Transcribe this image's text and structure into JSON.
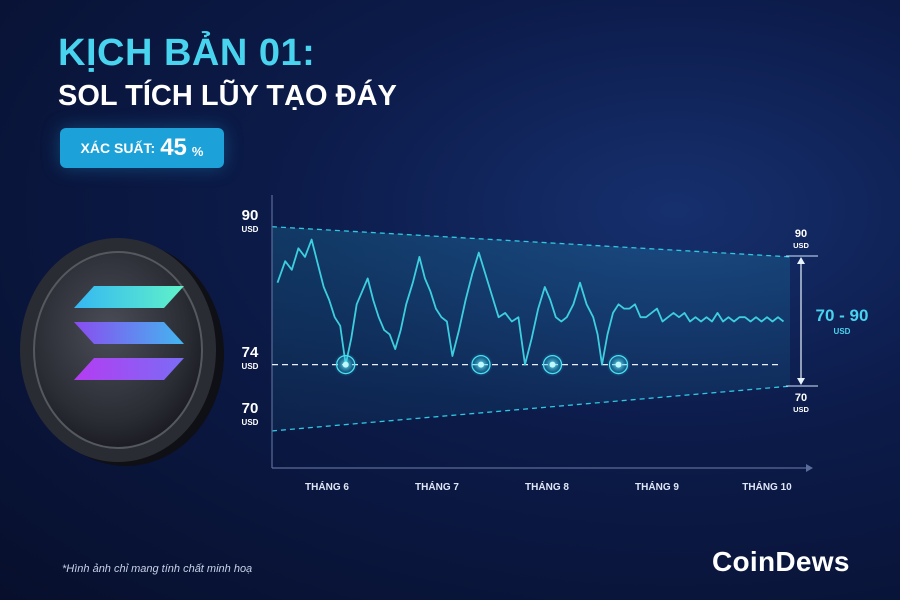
{
  "header": {
    "title": "KỊCH BẢN 01:",
    "subtitle": "SOL TÍCH LŨY TẠO ĐÁY"
  },
  "badge": {
    "label": "XÁC SUẤT:",
    "value": "45",
    "unit": "%"
  },
  "coin": {
    "icon": "solana-logo-icon"
  },
  "chart_data": {
    "type": "line",
    "title": "",
    "xlabel": "",
    "ylabel": "",
    "ylim": [
      62,
      96
    ],
    "x_tick_labels": [
      "THÁNG 6",
      "THÁNG 7",
      "THÁNG 8",
      "THÁNG 9",
      "THÁNG 10"
    ],
    "x_range": [
      5.5,
      10.3
    ],
    "series": [
      {
        "values": [
          [
            5.55,
            83.5
          ],
          [
            5.62,
            86.0
          ],
          [
            5.68,
            85.0
          ],
          [
            5.74,
            87.5
          ],
          [
            5.8,
            86.5
          ],
          [
            5.86,
            88.5
          ],
          [
            5.92,
            85.5
          ],
          [
            5.97,
            83.0
          ],
          [
            6.02,
            81.5
          ],
          [
            6.07,
            79.5
          ],
          [
            6.12,
            78.5
          ],
          [
            6.17,
            74.0
          ],
          [
            6.22,
            77.0
          ],
          [
            6.27,
            81.0
          ],
          [
            6.32,
            82.5
          ],
          [
            6.37,
            84.0
          ],
          [
            6.42,
            81.5
          ],
          [
            6.47,
            79.5
          ],
          [
            6.52,
            78.0
          ],
          [
            6.57,
            77.5
          ],
          [
            6.62,
            75.8
          ],
          [
            6.67,
            78.0
          ],
          [
            6.72,
            81.0
          ],
          [
            6.78,
            83.5
          ],
          [
            6.84,
            86.5
          ],
          [
            6.89,
            84.0
          ],
          [
            6.94,
            82.5
          ],
          [
            6.99,
            80.5
          ],
          [
            7.04,
            79.5
          ],
          [
            7.09,
            79.0
          ],
          [
            7.14,
            75.0
          ],
          [
            7.2,
            78.0
          ],
          [
            7.26,
            81.5
          ],
          [
            7.32,
            84.5
          ],
          [
            7.38,
            87.0
          ],
          [
            7.44,
            84.5
          ],
          [
            7.5,
            82.0
          ],
          [
            7.56,
            79.5
          ],
          [
            7.62,
            80.0
          ],
          [
            7.68,
            79.0
          ],
          [
            7.74,
            79.5
          ],
          [
            7.8,
            74.0
          ],
          [
            7.86,
            77.0
          ],
          [
            7.92,
            80.5
          ],
          [
            7.98,
            83.0
          ],
          [
            8.03,
            81.5
          ],
          [
            8.08,
            79.5
          ],
          [
            8.13,
            79.0
          ],
          [
            8.18,
            79.5
          ],
          [
            8.24,
            81.0
          ],
          [
            8.3,
            83.5
          ],
          [
            8.36,
            81.0
          ],
          [
            8.42,
            79.5
          ],
          [
            8.46,
            77.5
          ],
          [
            8.5,
            74.0
          ],
          [
            8.55,
            77.5
          ],
          [
            8.6,
            80.0
          ],
          [
            8.65,
            81.0
          ],
          [
            8.7,
            80.5
          ],
          [
            8.75,
            80.5
          ],
          [
            8.8,
            81.0
          ],
          [
            8.85,
            79.5
          ],
          [
            8.9,
            79.5
          ],
          [
            8.95,
            80.0
          ],
          [
            9.0,
            80.5
          ],
          [
            9.05,
            79.0
          ],
          [
            9.1,
            79.5
          ],
          [
            9.15,
            80.0
          ],
          [
            9.2,
            79.5
          ],
          [
            9.25,
            80.0
          ],
          [
            9.3,
            79.0
          ],
          [
            9.35,
            79.5
          ],
          [
            9.4,
            79.0
          ],
          [
            9.45,
            79.5
          ],
          [
            9.5,
            79.0
          ],
          [
            9.55,
            80.0
          ],
          [
            9.6,
            79.0
          ],
          [
            9.65,
            79.5
          ],
          [
            9.7,
            79.0
          ],
          [
            9.75,
            79.5
          ],
          [
            9.8,
            79.5
          ],
          [
            9.85,
            79.0
          ],
          [
            9.9,
            79.5
          ],
          [
            9.95,
            79.0
          ],
          [
            10.0,
            79.5
          ],
          [
            10.05,
            79.0
          ],
          [
            10.1,
            79.5
          ],
          [
            10.15,
            79.0
          ]
        ]
      }
    ],
    "support_level": {
      "value": 74,
      "label_value": "74",
      "unit": "USD",
      "touch_points": [
        6.17,
        7.4,
        8.05,
        8.65
      ]
    },
    "channel": {
      "upper_start": 90,
      "upper_end": 86.5,
      "lower_start": 66.3,
      "lower_end": 71.5
    },
    "left_labels": [
      {
        "value": "90",
        "unit": "USD"
      },
      {
        "value": "74",
        "unit": "USD"
      },
      {
        "value": "70",
        "unit": "USD"
      }
    ],
    "right_range": {
      "top": {
        "value": "90",
        "unit": "USD"
      },
      "bottom": {
        "value": "70",
        "unit": "USD"
      },
      "range_label": "70 - 90",
      "range_unit": "USD"
    }
  },
  "footer": {
    "note": "*Hình ảnh chỉ mang tính chất minh hoạ",
    "logo": "CoinDews"
  },
  "colors": {
    "accent": "#48d3ee",
    "badge": "#1ca1d9",
    "line": "#3fd7e6",
    "background": "#0a1640"
  }
}
